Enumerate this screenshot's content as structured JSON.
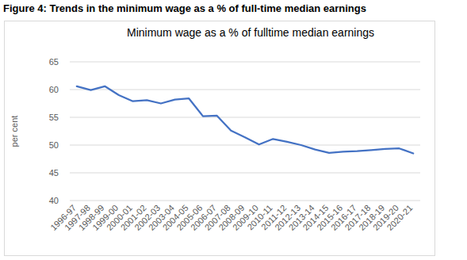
{
  "chart_data": {
    "type": "line",
    "title": "Figure 4: Trends in the minimum wage as a % of full-time median earnings",
    "subtitle": "Minimum wage as a % of fulltime median earnings",
    "y_label": "per cent",
    "categories": [
      "1996-97",
      "1997-98",
      "1998-99",
      "1999-00",
      "2000-01",
      "2001-02",
      "2002-03",
      "2003-04",
      "2004-05",
      "2005-06",
      "2006-07",
      "2007-08",
      "2008-09",
      "2009-10",
      "2010-11",
      "2011-12",
      "2012-13",
      "2013-14",
      "2014-15",
      "2015-16",
      "2016-17",
      "2017-18",
      "2018-19",
      "2019-20",
      "2020-21"
    ],
    "values": [
      60.6,
      59.9,
      60.6,
      59.0,
      57.9,
      58.1,
      57.5,
      58.2,
      58.4,
      55.2,
      55.3,
      52.6,
      51.4,
      50.1,
      51.1,
      50.6,
      50.0,
      49.2,
      48.6,
      48.8,
      48.9,
      49.1,
      49.3,
      49.4,
      48.5
    ],
    "color": "#4472c4",
    "ylim": [
      40,
      65
    ],
    "yticks": [
      40,
      45,
      50,
      55,
      60,
      65
    ],
    "grid": true
  }
}
